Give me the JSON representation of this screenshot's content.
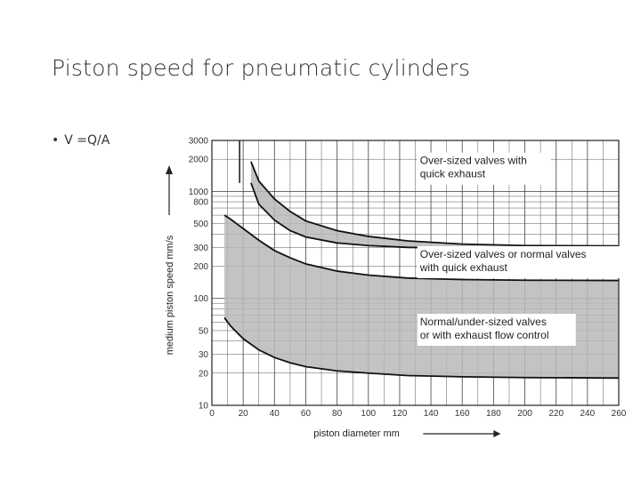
{
  "slide": {
    "title": "Piston speed for pneumatic cylinders",
    "bullet": "V =Q/A",
    "bullet_marker": "•"
  },
  "chart_data": {
    "type": "area",
    "title": "",
    "xlabel": "piston diameter  mm",
    "ylabel": "medium piston speed  mm/s",
    "xlim": [
      0,
      260
    ],
    "ylim": [
      10,
      3000
    ],
    "y_scale": "log",
    "grid": true,
    "x_ticks": [
      0,
      20,
      40,
      60,
      80,
      100,
      120,
      140,
      160,
      180,
      200,
      220,
      240,
      260
    ],
    "y_ticks": [
      10,
      20,
      30,
      50,
      100,
      200,
      300,
      500,
      800,
      1000,
      2000,
      3000
    ],
    "fill_color": "#b9b9b9",
    "bands": [
      {
        "name": "Over-sized valves with quick exhaust",
        "x": [
          25,
          30,
          40,
          50,
          60,
          80,
          100,
          125,
          160,
          200,
          260
        ],
        "upper": [
          1900,
          1250,
          850,
          650,
          530,
          430,
          380,
          345,
          322,
          312,
          310
        ],
        "lower": [
          1200,
          760,
          540,
          430,
          375,
          330,
          312,
          300,
          295,
          292,
          290
        ]
      },
      {
        "name": "Over-sized valves or normal valves with quick exhaust",
        "x": [
          8,
          12,
          20,
          30,
          40,
          50,
          60,
          80,
          100,
          125,
          160,
          200,
          260
        ],
        "upper": [
          600,
          550,
          450,
          350,
          280,
          240,
          210,
          180,
          165,
          155,
          150,
          148,
          147
        ],
        "lower": [
          66,
          55,
          42,
          33,
          28,
          25,
          23,
          21,
          20,
          19,
          18.5,
          18.2,
          18
        ]
      }
    ],
    "annotations": [
      {
        "lines": [
          "Over-sized valves with",
          "quick exhaust"
        ]
      },
      {
        "lines": [
          "Over-sized valves or normal valves",
          "with quick exhaust"
        ]
      },
      {
        "lines": [
          "Normal/under-sized valves",
          "or with exhaust flow control"
        ]
      }
    ]
  }
}
